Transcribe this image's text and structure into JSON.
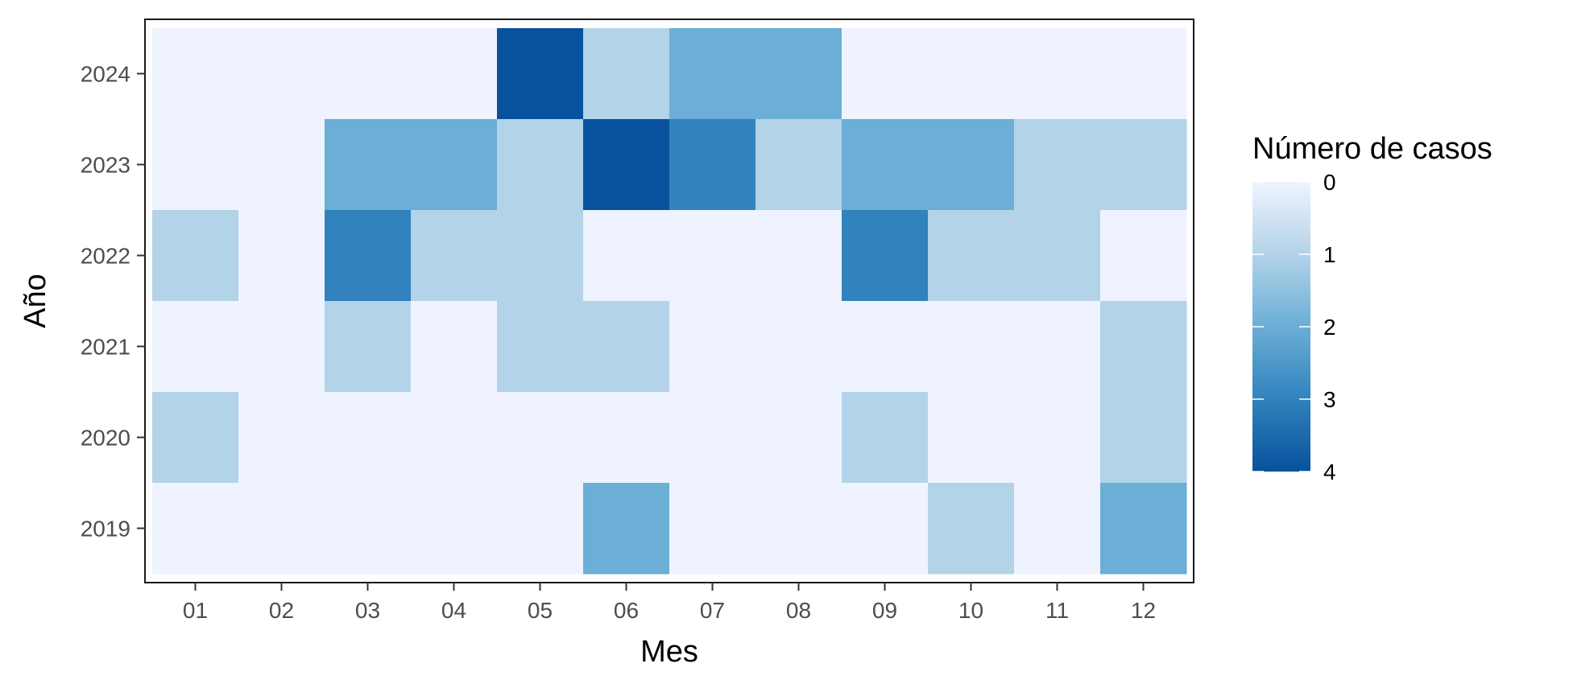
{
  "chart_data": {
    "type": "heatmap",
    "title": "",
    "xlabel": "Mes",
    "ylabel": "Año",
    "x_categories": [
      "01",
      "02",
      "03",
      "04",
      "05",
      "06",
      "07",
      "08",
      "09",
      "10",
      "11",
      "12"
    ],
    "y_categories": [
      "2019",
      "2020",
      "2021",
      "2022",
      "2023",
      "2024"
    ],
    "values": {
      "2024": [
        0,
        0,
        0,
        0,
        4,
        1,
        2,
        2,
        0,
        0,
        0,
        0
      ],
      "2023": [
        0,
        0,
        2,
        2,
        1,
        4,
        3,
        1,
        2,
        2,
        1,
        1
      ],
      "2022": [
        1,
        0,
        3,
        1,
        1,
        0,
        0,
        0,
        3,
        1,
        1,
        0
      ],
      "2021": [
        0,
        0,
        1,
        0,
        1,
        1,
        0,
        0,
        0,
        0,
        0,
        1
      ],
      "2020": [
        1,
        0,
        0,
        0,
        0,
        0,
        0,
        0,
        1,
        0,
        0,
        1
      ],
      "2019": [
        0,
        0,
        0,
        0,
        0,
        2,
        0,
        0,
        0,
        1,
        0,
        2
      ]
    },
    "color_scale": {
      "min": 0,
      "max": 4,
      "stops": [
        "#eff3ff",
        "#b3d3e8",
        "#6baed6",
        "#3182bd",
        "#08519c"
      ]
    },
    "legend": {
      "title": "Número de casos",
      "ticks": [
        "0",
        "1",
        "2",
        "3",
        "4"
      ],
      "placement": "right"
    },
    "grid": false
  }
}
